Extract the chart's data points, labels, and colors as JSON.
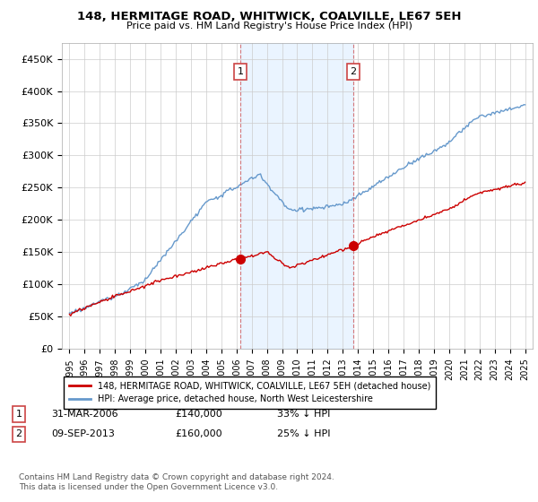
{
  "title": "148, HERMITAGE ROAD, WHITWICK, COALVILLE, LE67 5EH",
  "subtitle": "Price paid vs. HM Land Registry's House Price Index (HPI)",
  "legend_line1": "148, HERMITAGE ROAD, WHITWICK, COALVILLE, LE67 5EH (detached house)",
  "legend_line2": "HPI: Average price, detached house, North West Leicestershire",
  "footnote": "Contains HM Land Registry data © Crown copyright and database right 2024.\nThis data is licensed under the Open Government Licence v3.0.",
  "sale1_label": "1",
  "sale1_date": "31-MAR-2006",
  "sale1_price": "£140,000",
  "sale1_hpi": "33% ↓ HPI",
  "sale1_year": 2006.25,
  "sale1_value": 140000,
  "sale2_label": "2",
  "sale2_date": "09-SEP-2013",
  "sale2_price": "£160,000",
  "sale2_hpi": "25% ↓ HPI",
  "sale2_year": 2013.69,
  "sale2_value": 160000,
  "red_color": "#cc0000",
  "blue_color": "#6699cc",
  "fill_color": "#ddeeff",
  "background_color": "#ffffff",
  "ylim": [
    0,
    475000
  ],
  "xlim": [
    1994.5,
    2025.5
  ],
  "yticks": [
    0,
    50000,
    100000,
    150000,
    200000,
    250000,
    300000,
    350000,
    400000,
    450000
  ],
  "ytick_labels": [
    "£0",
    "£50K",
    "£100K",
    "£150K",
    "£200K",
    "£250K",
    "£300K",
    "£350K",
    "£400K",
    "£450K"
  ]
}
